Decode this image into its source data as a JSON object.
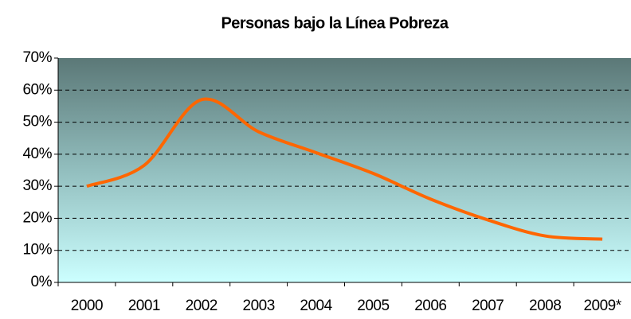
{
  "chart_data": {
    "type": "line",
    "title": "Personas bajo la Línea Pobreza",
    "categories": [
      "2000",
      "2001",
      "2002",
      "2003",
      "2004",
      "2005",
      "2006",
      "2007",
      "2008",
      "2009*"
    ],
    "series": [
      {
        "name": "Personas bajo la Línea Pobreza",
        "color": "#ff6600",
        "values": [
          30,
          36.5,
          57,
          47,
          40.5,
          34,
          26,
          19.5,
          14.5,
          13.5
        ]
      }
    ],
    "ylim": [
      0,
      70
    ],
    "yticks": [
      {
        "value": 0,
        "label": "0%"
      },
      {
        "value": 10,
        "label": "10%"
      },
      {
        "value": 20,
        "label": "20%"
      },
      {
        "value": 30,
        "label": "30%"
      },
      {
        "value": 40,
        "label": "40%"
      },
      {
        "value": 50,
        "label": "50%"
      },
      {
        "value": 60,
        "label": "60%"
      },
      {
        "value": 70,
        "label": "70%"
      }
    ],
    "grid": true
  }
}
